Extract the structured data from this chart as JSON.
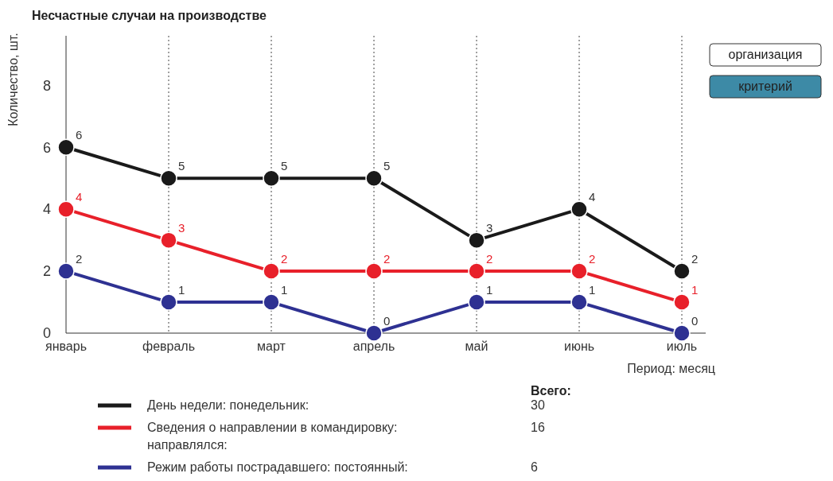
{
  "chart_data": {
    "type": "line",
    "title": "Несчастные случаи на производстве",
    "xlabel": "Период: месяц",
    "ylabel": "Количество, шт.",
    "categories": [
      "январь",
      "февраль",
      "март",
      "апрель",
      "май",
      "июнь",
      "июль"
    ],
    "series": [
      {
        "name": "День недели: понедельник:",
        "color": "#1a1a1a",
        "values": [
          6,
          5,
          5,
          5,
          3,
          4,
          2
        ]
      },
      {
        "name": "Сведения о направлении в командировку: направлялся:",
        "color": "#e8202a",
        "values": [
          4,
          3,
          2,
          2,
          2,
          2,
          1
        ]
      },
      {
        "name": "Режим работы пострадавшего: постоянный:",
        "color": "#2e3192",
        "values": [
          2,
          1,
          1,
          0,
          1,
          1,
          0
        ]
      }
    ],
    "ylim": [
      0,
      9.6
    ],
    "yticks": [
      0,
      2,
      4,
      6,
      8
    ],
    "grid": "x",
    "legend": "bottom",
    "marker": "circle",
    "line_style": "solid",
    "data_labels": true,
    "legend_title": "Всего:",
    "totals": [
      "30",
      "16",
      "6"
    ],
    "annotations": [
      "организация",
      "критерий"
    ]
  }
}
